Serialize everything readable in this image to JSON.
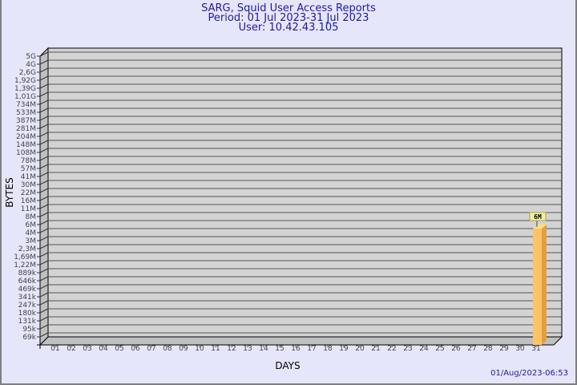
{
  "chart_data": {
    "type": "bar",
    "title": "SARG, Squid User Access Reports",
    "subtitle": [
      "Period: 01 Jul 2023-31 Jul 2023",
      "User: 10.42.43.105"
    ],
    "xlabel": "DAYS",
    "ylabel": "BYTES",
    "y_scale": "log",
    "y_ticks": [
      "5G",
      "4G",
      "2,6G",
      "1,92G",
      "1,39G",
      "1,01G",
      "734M",
      "533M",
      "387M",
      "281M",
      "204M",
      "148M",
      "108M",
      "78M",
      "57M",
      "41M",
      "30M",
      "22M",
      "16M",
      "11M",
      "8M",
      "6M",
      "4M",
      "3M",
      "2,3M",
      "1,69M",
      "1,22M",
      "889k",
      "646k",
      "469k",
      "341k",
      "247k",
      "180k",
      "131k",
      "95k",
      "69k"
    ],
    "categories": [
      "01",
      "02",
      "03",
      "04",
      "05",
      "06",
      "07",
      "08",
      "09",
      "10",
      "11",
      "12",
      "13",
      "14",
      "15",
      "16",
      "17",
      "18",
      "19",
      "20",
      "21",
      "22",
      "23",
      "24",
      "25",
      "26",
      "27",
      "28",
      "29",
      "30",
      "31"
    ],
    "bars": [
      {
        "day": "31",
        "value_label": "6M",
        "tick_index": 21
      }
    ],
    "grid": true,
    "colors": {
      "bar_front": "#ffc266",
      "bar_side": "#e0a040",
      "bar_top": "#ffe080",
      "plot_bg": "#d3d3d3",
      "label_bg": "#f0f0a8"
    }
  },
  "footer": {
    "timestamp": "01/Aug/2023-06:53"
  }
}
